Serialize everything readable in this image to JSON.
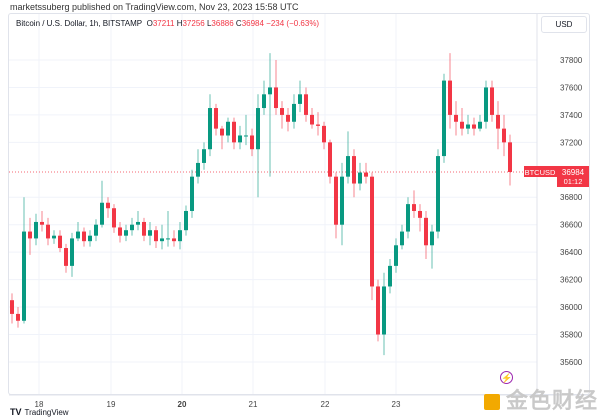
{
  "published": "marketssuberg published on TradingView.com, Nov 23, 2023 15:58 UTC",
  "header": {
    "symbol": "Bitcoin / U.S. Dollar, 1h, BITSTAMP",
    "o_label": "O",
    "o": "37211",
    "h_label": "H",
    "h": "37256",
    "l_label": "L",
    "l": "36886",
    "c_label": "C",
    "c": "36984",
    "change": "−234 (−0.63%)"
  },
  "currency_button": "USD",
  "footer_logo": "TradingView",
  "watermark": "金色财经",
  "icons": {
    "alert": "lightning-icon",
    "logo": "tradingview-logo-icon"
  },
  "colors": {
    "up": "#089981",
    "down": "#f23645",
    "grid": "#f0f3fa"
  },
  "chart_data": {
    "type": "candlestick",
    "interval": "1h",
    "x_ticks": [
      "18",
      "19",
      "20",
      "21",
      "22",
      "23"
    ],
    "y_ticks": [
      35600,
      35800,
      36000,
      36200,
      36400,
      36600,
      36800,
      37200,
      37400,
      37600,
      37800
    ],
    "ylim": [
      35450,
      37990
    ],
    "grid": true,
    "last_price": {
      "symbol": "BTCUSD",
      "price": "36984",
      "countdown": "01:12"
    },
    "first_open": 36050,
    "close": [
      35950,
      35900,
      36550,
      36500,
      36620,
      36600,
      36500,
      36520,
      36430,
      36300,
      36500,
      36550,
      36480,
      36520,
      36600,
      36760,
      36720,
      36580,
      36520,
      36560,
      36600,
      36620,
      36520,
      36560,
      36480,
      36500,
      36500,
      36480,
      36560,
      36700,
      36950,
      37050,
      37150,
      37450,
      37300,
      37250,
      37350,
      37200,
      37250,
      37250,
      37150,
      37450,
      37550,
      37600,
      37450,
      37400,
      37350,
      37480,
      37550,
      37400,
      37330,
      37320,
      37200,
      36950,
      36600,
      36950,
      37100,
      36900,
      36980,
      36950,
      36150,
      35800,
      36150,
      36300,
      36450,
      36550,
      36750,
      36700,
      36650,
      36450,
      36550,
      37100,
      37650,
      37400,
      37350,
      37300,
      37330,
      37300,
      37350,
      37600,
      37400,
      37300,
      37200,
      36984
    ],
    "high": [
      36100,
      36000,
      36800,
      36650,
      36680,
      36700,
      36650,
      36560,
      36560,
      36460,
      36540,
      36620,
      36580,
      36560,
      36640,
      36920,
      36800,
      36750,
      36620,
      36600,
      36650,
      36700,
      36650,
      36620,
      36590,
      36600,
      36700,
      36560,
      36620,
      36740,
      37000,
      37150,
      37200,
      37550,
      37480,
      37320,
      37380,
      37380,
      37320,
      37400,
      37300,
      37550,
      37650,
      37850,
      37800,
      37500,
      37450,
      37550,
      37650,
      37600,
      37450,
      37420,
      37350,
      37220,
      36980,
      37050,
      37280,
      37150,
      37050,
      37050,
      36980,
      36200,
      36250,
      36350,
      36500,
      36600,
      36800,
      36850,
      36750,
      36700,
      36600,
      37150,
      37700,
      37850,
      37500,
      37450,
      37400,
      37380,
      37400,
      37650,
      37650,
      37500,
      37400,
      37256
    ],
    "low": [
      35880,
      35850,
      35880,
      36380,
      36450,
      36550,
      36450,
      36460,
      36400,
      36250,
      36220,
      36480,
      36440,
      36440,
      36480,
      36580,
      36650,
      36540,
      36470,
      36480,
      36520,
      36560,
      36480,
      36450,
      36430,
      36420,
      36440,
      36440,
      36420,
      36520,
      36650,
      36900,
      37000,
      37100,
      37250,
      37150,
      37200,
      37150,
      37150,
      37180,
      37100,
      36800,
      37400,
      36950,
      37400,
      37300,
      37280,
      37300,
      37420,
      37350,
      37300,
      37250,
      37150,
      36900,
      36500,
      36450,
      36900,
      36800,
      36850,
      36900,
      36050,
      35750,
      35650,
      36100,
      36250,
      36420,
      36500,
      36650,
      36550,
      36350,
      36280,
      36500,
      37050,
      37300,
      37250,
      37250,
      37260,
      37250,
      37280,
      37300,
      37350,
      37150,
      37100,
      36886
    ]
  }
}
